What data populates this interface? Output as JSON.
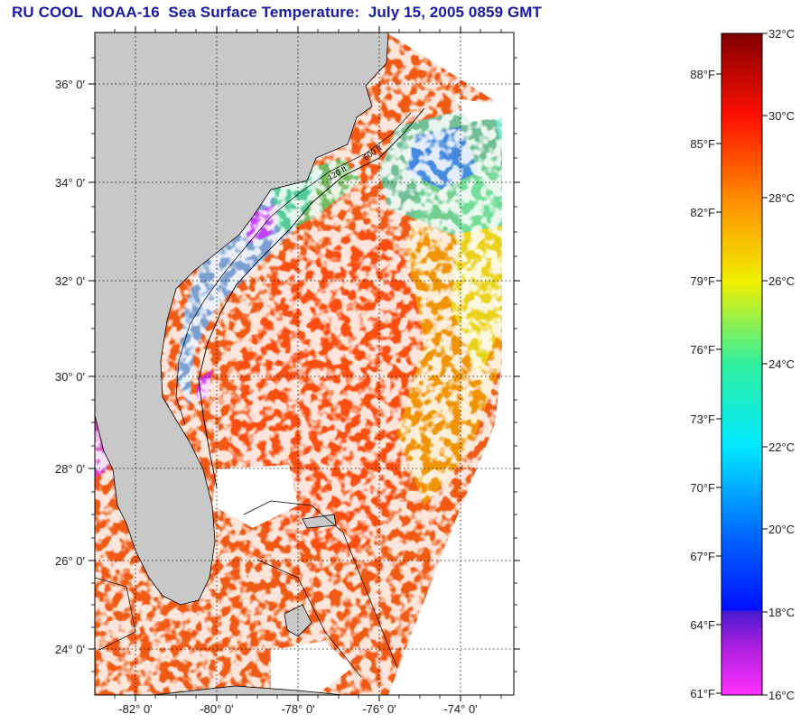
{
  "title": "RU COOL  NOAA-16  Sea Surface Temperature:  July 15, 2005 0859 GMT",
  "latitude_labels": [
    "36° 0'",
    "34° 0'",
    "32° 0'",
    "30° 0'",
    "28° 0'",
    "26° 0'",
    "24° 0'"
  ],
  "longitude_labels": [
    "-82° 0'",
    "-80° 0'",
    "-78° 0'",
    "-76° 0'",
    "-74° 0'"
  ],
  "colorbar": {
    "celsius_labels": [
      "32°C",
      "30°C",
      "28°C",
      "26°C",
      "24°C",
      "22°C",
      "20°C",
      "18°C",
      "16°C"
    ],
    "fahrenheit_labels": [
      "88°F",
      "85°F",
      "82°F",
      "79°F",
      "76°F",
      "73°F",
      "70°F",
      "67°F",
      "64°F",
      "61°F"
    ]
  },
  "isobath_labels": [
    "600 ft",
    "120 ft"
  ],
  "colors": {
    "title": "#1a1aa8",
    "land": "#c8c8c8",
    "cloud": "#ffffff",
    "warm_sst": "#f05a14",
    "cool_sst": "#30c8ff"
  },
  "icons": [
    "satellite-sst-map",
    "colorbar"
  ]
}
